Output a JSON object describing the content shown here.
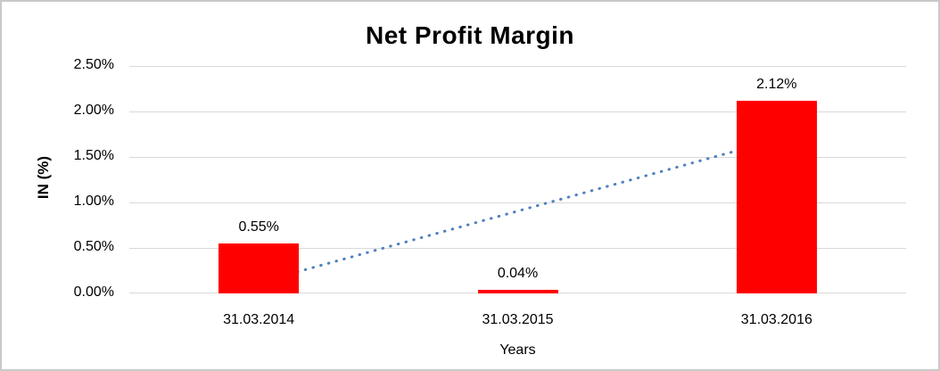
{
  "title": "Net Profit Margin",
  "chart_data": {
    "type": "bar",
    "title": "Net Profit Margin",
    "categories": [
      "31.03.2014",
      "31.03.2015",
      "31.03.2016"
    ],
    "values": [
      0.55,
      0.04,
      2.12
    ],
    "data_labels": [
      "0.55%",
      "0.04%",
      "2.12%"
    ],
    "xlabel": "Years",
    "ylabel": "IN (%)",
    "ylim": [
      0,
      2.5
    ],
    "ytick_step": 0.5,
    "ytick_labels": [
      "0.00%",
      "0.50%",
      "1.00%",
      "1.50%",
      "2.00%",
      "2.50%"
    ],
    "grid": true,
    "legend": "none",
    "bar_color": "#ff0000",
    "trendline": {
      "type": "linear",
      "style": "dotted",
      "color": "#4f81bd",
      "start_value": 0.12,
      "end_value": 1.69
    }
  },
  "colors": {
    "bar": "#ff0000",
    "trendline": "#4f81bd",
    "gridline": "#d9d9d9",
    "text": "#000000",
    "frame_border": "#c9c9c9"
  }
}
